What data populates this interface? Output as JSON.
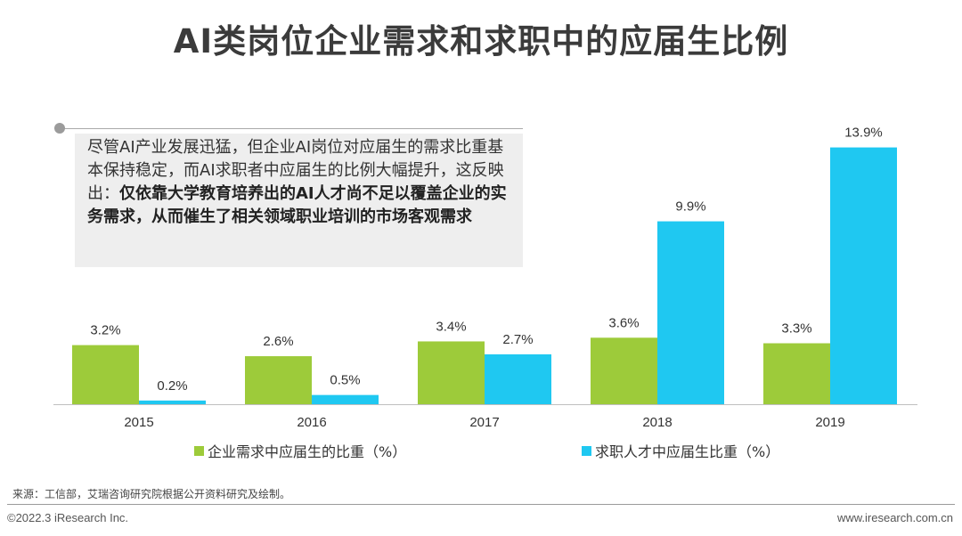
{
  "title": "AI类岗位企业需求和求职中的应届生比例",
  "callout": {
    "text_plain": "尽管AI产业发展迅猛，但企业AI岗位对应届生的需求比重基本保持稳定，而AI求职者中应届生的比例大幅提升，这反映出：",
    "text_bold": "仅依靠大学教育培养出的AI人才尚不足以覆盖企业的实务需求，从而催生了相关领域职业培训的市场客观需求"
  },
  "chart_data": {
    "type": "bar",
    "categories": [
      "2015",
      "2016",
      "2017",
      "2018",
      "2019"
    ],
    "series": [
      {
        "name": "企业需求中应届生的比重（%）",
        "values": [
          3.2,
          2.6,
          3.4,
          3.6,
          3.3
        ],
        "labels": [
          "3.2%",
          "2.6%",
          "3.4%",
          "3.6%",
          "3.3%"
        ],
        "color": "#9dcb3a"
      },
      {
        "name": "求职人才中应届生比重（%）",
        "values": [
          0.2,
          0.5,
          2.7,
          9.9,
          13.9
        ],
        "labels": [
          "0.2%",
          "0.5%",
          "2.7%",
          "9.9%",
          "13.9%"
        ],
        "color": "#1fc8f1"
      }
    ],
    "legend_position": "bottom",
    "grid": false
  },
  "source": "来源：工信部，艾瑞咨询研究院根据公开资料研究及绘制。",
  "footer": {
    "copyright": "©2022.3 iResearch Inc.",
    "website": "www.iresearch.com.cn"
  }
}
